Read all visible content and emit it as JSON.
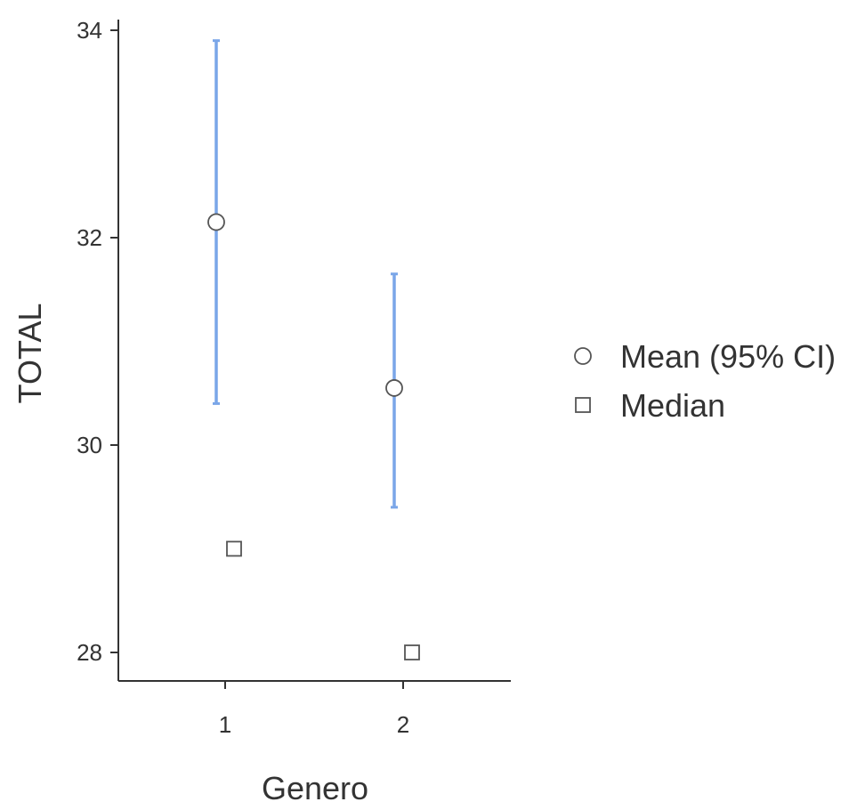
{
  "chart_data": {
    "type": "scatter",
    "xlabel": "Genero",
    "ylabel": "TOTAL",
    "categories": [
      "1",
      "2"
    ],
    "ylim": [
      27.7,
      34.2
    ],
    "yticks": [
      "28",
      "30",
      "32",
      "34"
    ],
    "series": [
      {
        "name": "Mean (95% CI)",
        "marker": "circle",
        "values": [
          32.15,
          30.55
        ],
        "ci_lower": [
          30.4,
          29.4
        ],
        "ci_upper": [
          33.9,
          31.65
        ]
      },
      {
        "name": "Median",
        "marker": "square",
        "values": [
          29.0,
          28.0
        ]
      }
    ],
    "grid": false,
    "legend_position": "right",
    "colors": {
      "ci": "#7aa6e8",
      "marker_stroke": "#555555",
      "axis": "#333333"
    }
  }
}
